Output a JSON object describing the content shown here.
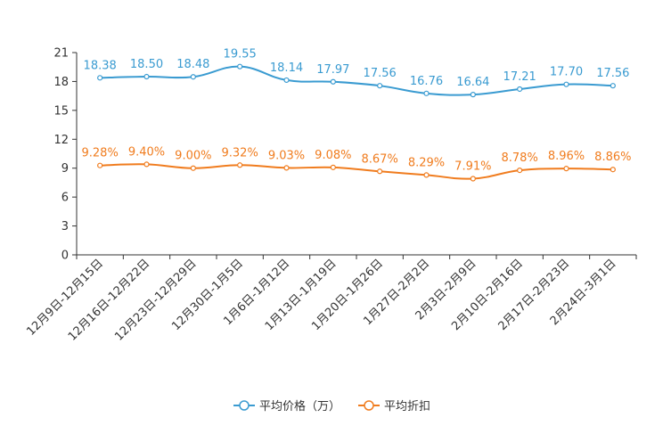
{
  "chart_data": {
    "type": "line",
    "title": "",
    "xlabel": "",
    "ylabel": "",
    "ylim": [
      0,
      21
    ],
    "yticks": [
      0,
      3,
      6,
      9,
      12,
      15,
      18,
      21
    ],
    "grid": false,
    "legend_position": "bottom",
    "categories": [
      "12月9日-12月15日",
      "12月16日-12月22日",
      "12月23日-12月29日",
      "12月30日-1月5日",
      "1月6日-1月12日",
      "1月13日-1月19日",
      "1月20日-1月26日",
      "1月27日-2月2日",
      "2月3日-2月9日",
      "2月10日-2月16日",
      "2月17日-2月23日",
      "2月24日-3月1日"
    ],
    "series": [
      {
        "name": "平均价格（万）",
        "color": "#3a9bd1",
        "values": [
          18.38,
          18.5,
          18.48,
          19.55,
          18.14,
          17.97,
          17.56,
          16.76,
          16.64,
          17.21,
          17.7,
          17.56
        ],
        "labels": [
          "18.38",
          "18.50",
          "18.48",
          "19.55",
          "18.14",
          "17.97",
          "17.56",
          "16.76",
          "16.64",
          "17.21",
          "17.70",
          "17.56"
        ]
      },
      {
        "name": "平均折扣",
        "color": "#f07c1e",
        "values": [
          9.28,
          9.4,
          9.0,
          9.32,
          9.03,
          9.08,
          8.67,
          8.29,
          7.91,
          8.78,
          8.96,
          8.86
        ],
        "labels": [
          "9.28%",
          "9.40%",
          "9.00%",
          "9.32%",
          "9.03%",
          "9.08%",
          "8.67%",
          "8.29%",
          "7.91%",
          "8.78%",
          "8.96%",
          "8.86%"
        ]
      }
    ]
  }
}
